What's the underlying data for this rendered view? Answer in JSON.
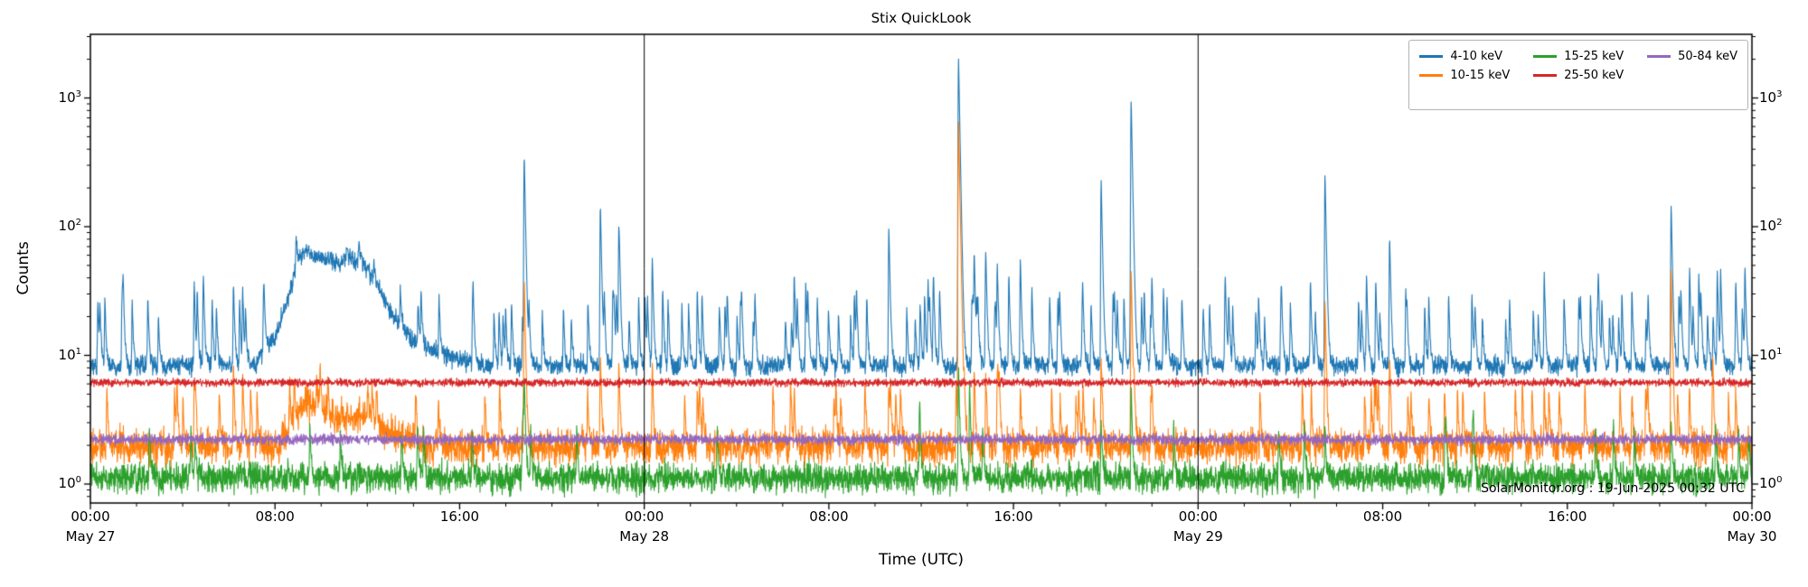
{
  "chart_data": {
    "type": "line",
    "title": "Stix QuickLook",
    "xlabel": "Time (UTC)",
    "ylabel": "Counts",
    "yscale": "log",
    "grid": false,
    "legend_position": "upper right",
    "watermark": "SolarMonitor.org : 19-Jun-2025 00:32 UTC",
    "x_range_hours": [
      0,
      72
    ],
    "ylim": [
      0.7,
      3100
    ],
    "x_ticks": {
      "hours": [
        0,
        8,
        16,
        24,
        32,
        40,
        48,
        56,
        64,
        72
      ],
      "labels": [
        "00:00",
        "08:00",
        "16:00",
        "00:00",
        "08:00",
        "16:00",
        "00:00",
        "08:00",
        "16:00",
        "00:00"
      ]
    },
    "y_ticks": {
      "exponents": [
        0,
        1,
        2,
        3
      ]
    },
    "date_labels": [
      {
        "t": 0,
        "label": "May 27"
      },
      {
        "t": 24,
        "label": "May 28"
      },
      {
        "t": 48,
        "label": "May 29"
      },
      {
        "t": 72,
        "label": "May 30"
      }
    ],
    "day_separators_hours": [
      24,
      48
    ],
    "series": [
      {
        "name": "4-10 keV",
        "color": "#1f77b4",
        "baseline": 8.3,
        "noise": 0.045,
        "envelope": [
          [
            7.2,
            9
          ],
          [
            8.0,
            14
          ],
          [
            8.6,
            28
          ],
          [
            9.0,
            55
          ],
          [
            9.35,
            68
          ],
          [
            9.8,
            58
          ],
          [
            10.3,
            55
          ],
          [
            10.8,
            52
          ],
          [
            11.3,
            56
          ],
          [
            11.9,
            50
          ],
          [
            12.3,
            38
          ],
          [
            12.8,
            26
          ],
          [
            13.5,
            16
          ],
          [
            14.3,
            12
          ],
          [
            15.3,
            10
          ],
          [
            16.5,
            9
          ]
        ],
        "spikes": [
          [
            4.5,
            30
          ],
          [
            4.9,
            22
          ],
          [
            6.2,
            28
          ],
          [
            6.6,
            24
          ],
          [
            18.8,
            350
          ],
          [
            20.5,
            15
          ],
          [
            22.1,
            140
          ],
          [
            22.9,
            90
          ],
          [
            24.35,
            50
          ],
          [
            24.8,
            25
          ],
          [
            26.3,
            25
          ],
          [
            27.5,
            18
          ],
          [
            28.8,
            20
          ],
          [
            30.5,
            35
          ],
          [
            31.0,
            28
          ],
          [
            31.5,
            20
          ],
          [
            33.2,
            22
          ],
          [
            34.6,
            90
          ],
          [
            36.3,
            30
          ],
          [
            36.8,
            25
          ],
          [
            37.62,
            2000
          ],
          [
            38.3,
            50
          ],
          [
            38.8,
            45
          ],
          [
            39.3,
            40
          ],
          [
            39.8,
            35
          ],
          [
            40.3,
            30
          ],
          [
            40.8,
            25
          ],
          [
            42.0,
            20
          ],
          [
            43.0,
            22
          ],
          [
            43.8,
            220
          ],
          [
            45.1,
            950
          ],
          [
            46.0,
            30
          ],
          [
            46.5,
            25
          ],
          [
            47.3,
            20
          ],
          [
            48.5,
            18
          ],
          [
            49.5,
            15
          ],
          [
            50.5,
            14
          ],
          [
            52.0,
            18
          ],
          [
            53.5,
            250
          ],
          [
            55.3,
            35
          ],
          [
            55.7,
            30
          ],
          [
            56.3,
            75
          ],
          [
            57.0,
            25
          ],
          [
            58.0,
            20
          ],
          [
            60.0,
            15
          ],
          [
            61.5,
            18
          ],
          [
            63.0,
            35
          ],
          [
            64.5,
            20
          ],
          [
            65.5,
            18
          ],
          [
            66.8,
            25
          ],
          [
            67.5,
            20
          ],
          [
            68.5,
            140
          ],
          [
            69.3,
            40
          ],
          [
            69.7,
            35
          ],
          [
            70.5,
            22
          ],
          [
            71.3,
            30
          ],
          [
            71.7,
            25
          ]
        ],
        "minor_spikes": {
          "count": 140,
          "peak_min": 10,
          "peak_max": 22
        }
      },
      {
        "name": "10-15 keV",
        "color": "#ff7f0e",
        "baseline": 1.95,
        "noise": 0.08,
        "envelope": [
          [
            8.2,
            2.1
          ],
          [
            8.8,
            3.0
          ],
          [
            9.3,
            4.4
          ],
          [
            9.7,
            4.0
          ],
          [
            10.4,
            3.4
          ],
          [
            11.2,
            3.2
          ],
          [
            11.9,
            3.3
          ],
          [
            12.4,
            2.8
          ],
          [
            13.2,
            2.4
          ],
          [
            14.2,
            2.15
          ]
        ],
        "spikes": [
          [
            4.5,
            4
          ],
          [
            6.2,
            6.5
          ],
          [
            6.6,
            5
          ],
          [
            18.8,
            38
          ],
          [
            22.1,
            8
          ],
          [
            22.9,
            7
          ],
          [
            24.35,
            7
          ],
          [
            26.3,
            3.5
          ],
          [
            30.5,
            3
          ],
          [
            34.6,
            4
          ],
          [
            37.62,
            650
          ],
          [
            38.3,
            6
          ],
          [
            38.8,
            5
          ],
          [
            39.3,
            5
          ],
          [
            40.3,
            3.5
          ],
          [
            43.8,
            8
          ],
          [
            45.1,
            45
          ],
          [
            46.0,
            3
          ],
          [
            53.5,
            25
          ],
          [
            55.5,
            3.5
          ],
          [
            56.3,
            8
          ],
          [
            58.0,
            3
          ],
          [
            63.0,
            3.5
          ],
          [
            66.8,
            3
          ],
          [
            68.5,
            45
          ],
          [
            70.3,
            8
          ],
          [
            71.3,
            3.5
          ]
        ],
        "minor_spikes": {
          "count": 70,
          "peak_min": 2.6,
          "peak_max": 4.2
        }
      },
      {
        "name": "15-25 keV",
        "color": "#2ca02c",
        "baseline": 1.12,
        "noise": 0.07,
        "envelope": null,
        "spikes": [
          [
            18.8,
            5
          ],
          [
            37.62,
            7
          ],
          [
            38.1,
            5
          ],
          [
            43.8,
            2
          ],
          [
            45.1,
            4.5
          ],
          [
            53.5,
            1.8
          ],
          [
            68.5,
            2
          ]
        ],
        "minor_spikes": {
          "count": 30,
          "peak_min": 1.4,
          "peak_max": 1.9
        }
      },
      {
        "name": "25-50 keV",
        "color": "#d62728",
        "baseline": 6.15,
        "noise": 0.018,
        "envelope": null,
        "spikes": [],
        "minor_spikes": null
      },
      {
        "name": "50-84 keV",
        "color": "#9467bd",
        "baseline": 2.22,
        "noise": 0.025,
        "envelope": null,
        "spikes": [],
        "minor_spikes": null
      }
    ]
  }
}
